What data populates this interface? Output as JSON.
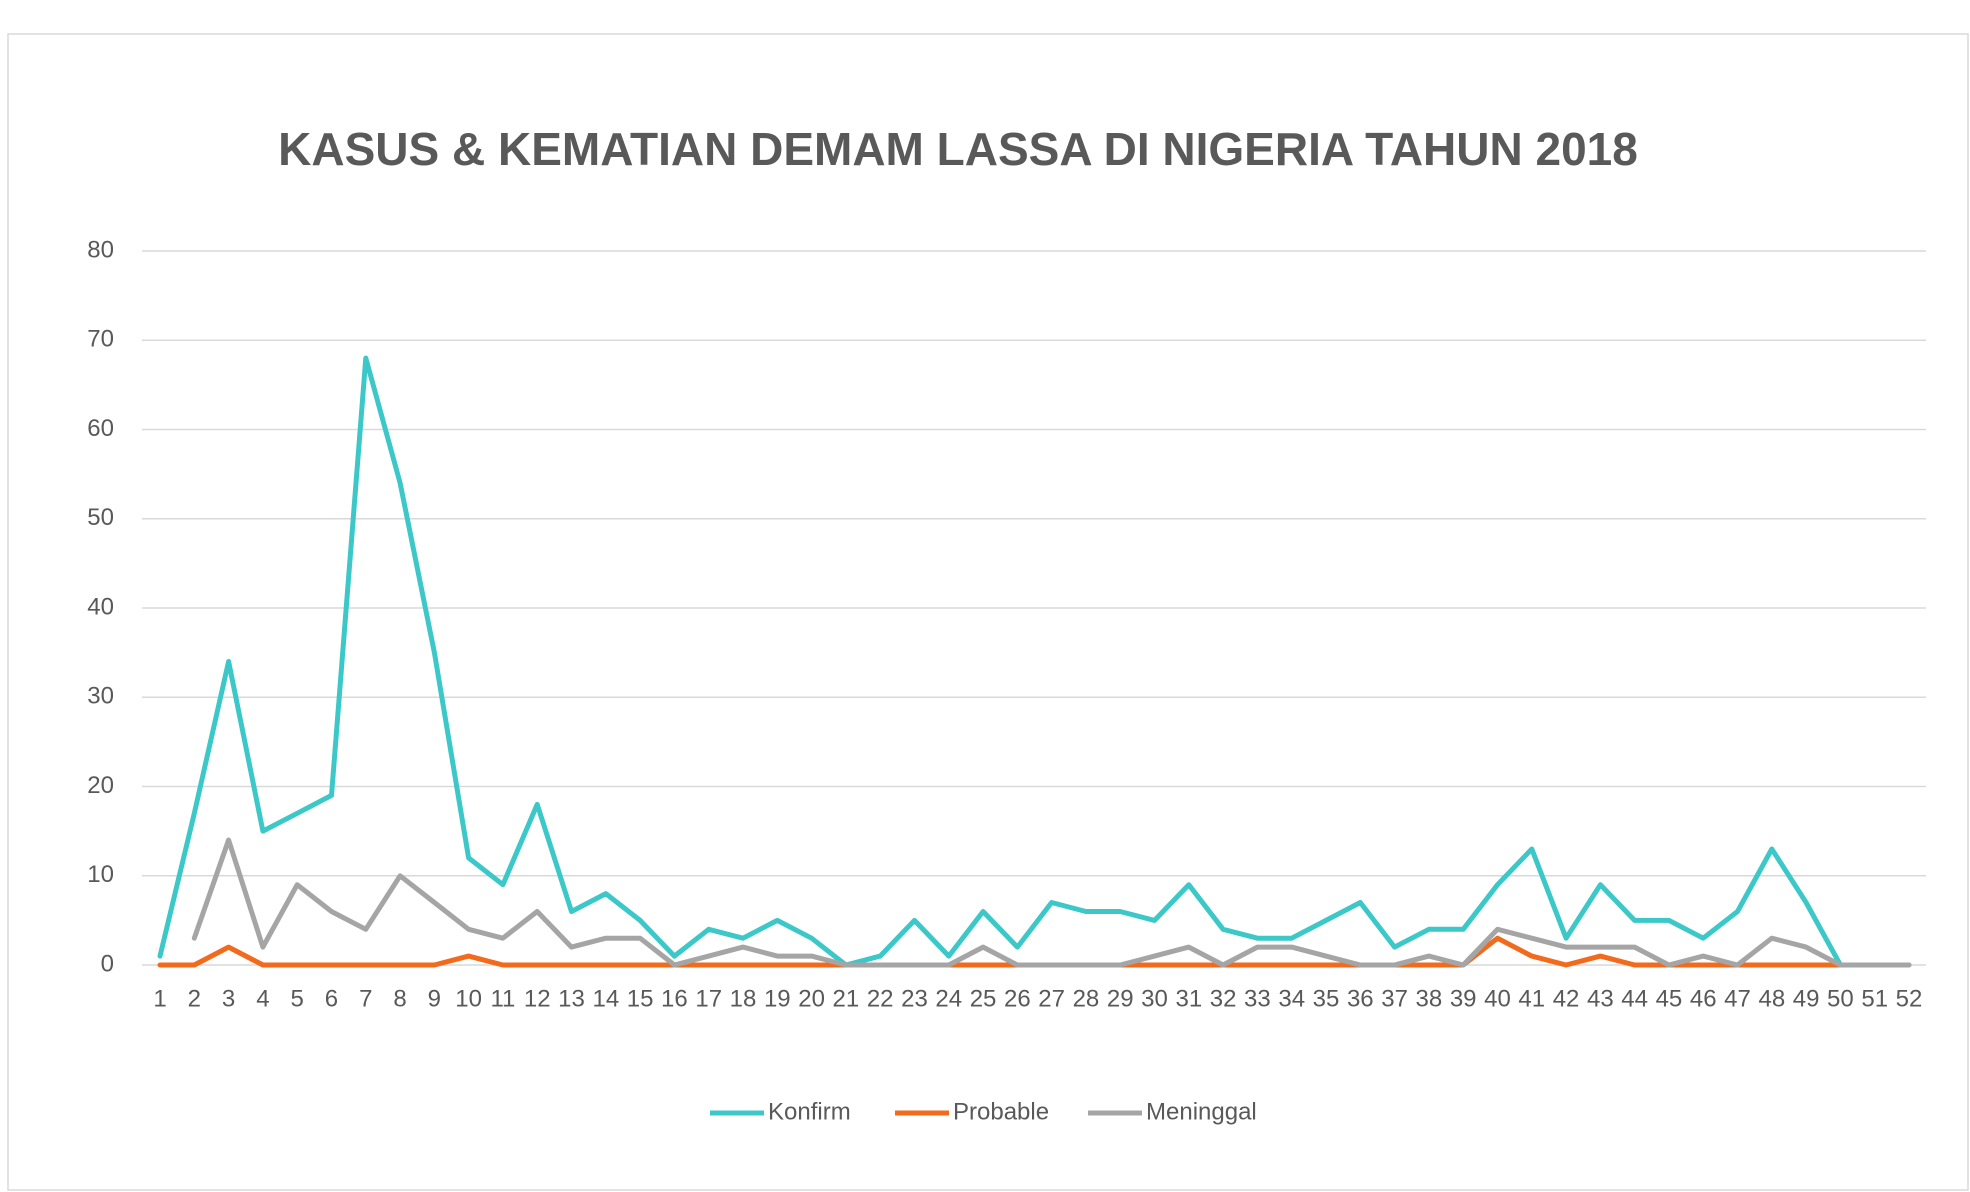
{
  "chart_data": {
    "type": "line",
    "title": "KASUS & KEMATIAN DEMAM LASSA DI NIGERIA TAHUN 2018",
    "categories": [
      "1",
      "2",
      "3",
      "4",
      "5",
      "6",
      "7",
      "8",
      "9",
      "10",
      "11",
      "12",
      "13",
      "14",
      "15",
      "16",
      "17",
      "18",
      "19",
      "20",
      "21",
      "22",
      "23",
      "24",
      "25",
      "26",
      "27",
      "28",
      "29",
      "30",
      "31",
      "32",
      "33",
      "34",
      "35",
      "36",
      "37",
      "38",
      "39",
      "40",
      "41",
      "42",
      "43",
      "44",
      "45",
      "46",
      "47",
      "48",
      "49",
      "50",
      "51",
      "52"
    ],
    "series": [
      {
        "name": "Konfirm",
        "color": "#3cc8c8",
        "values": [
          1,
          17,
          34,
          15,
          17,
          19,
          68,
          54,
          35,
          12,
          9,
          18,
          6,
          8,
          5,
          1,
          4,
          3,
          5,
          3,
          0,
          1,
          5,
          1,
          6,
          2,
          7,
          6,
          6,
          5,
          9,
          4,
          3,
          3,
          5,
          7,
          2,
          4,
          4,
          9,
          13,
          3,
          9,
          5,
          5,
          3,
          6,
          13,
          7,
          0,
          0,
          0
        ]
      },
      {
        "name": "Probable",
        "color": "#f26a1b",
        "values": [
          0,
          0,
          2,
          0,
          0,
          0,
          0,
          0,
          0,
          1,
          0,
          0,
          0,
          0,
          0,
          0,
          0,
          0,
          0,
          0,
          0,
          0,
          0,
          0,
          0,
          0,
          0,
          0,
          0,
          0,
          0,
          0,
          0,
          0,
          0,
          0,
          0,
          0,
          0,
          3,
          1,
          0,
          1,
          0,
          0,
          0,
          0,
          0,
          0,
          0,
          null,
          null
        ]
      },
      {
        "name": "Meninggal",
        "color": "#a5a5a5",
        "values": [
          null,
          3,
          14,
          2,
          9,
          6,
          4,
          10,
          7,
          4,
          3,
          6,
          2,
          3,
          3,
          0,
          1,
          2,
          1,
          1,
          0,
          0,
          0,
          0,
          2,
          0,
          0,
          0,
          0,
          1,
          2,
          0,
          2,
          2,
          1,
          0,
          0,
          1,
          0,
          4,
          3,
          2,
          2,
          2,
          0,
          1,
          0,
          3,
          2,
          0,
          0,
          0
        ]
      }
    ],
    "ylim": [
      0,
      80
    ],
    "yticks": [
      0,
      10,
      20,
      30,
      40,
      50,
      60,
      70,
      80
    ],
    "grid": true,
    "legend": "bottom"
  }
}
